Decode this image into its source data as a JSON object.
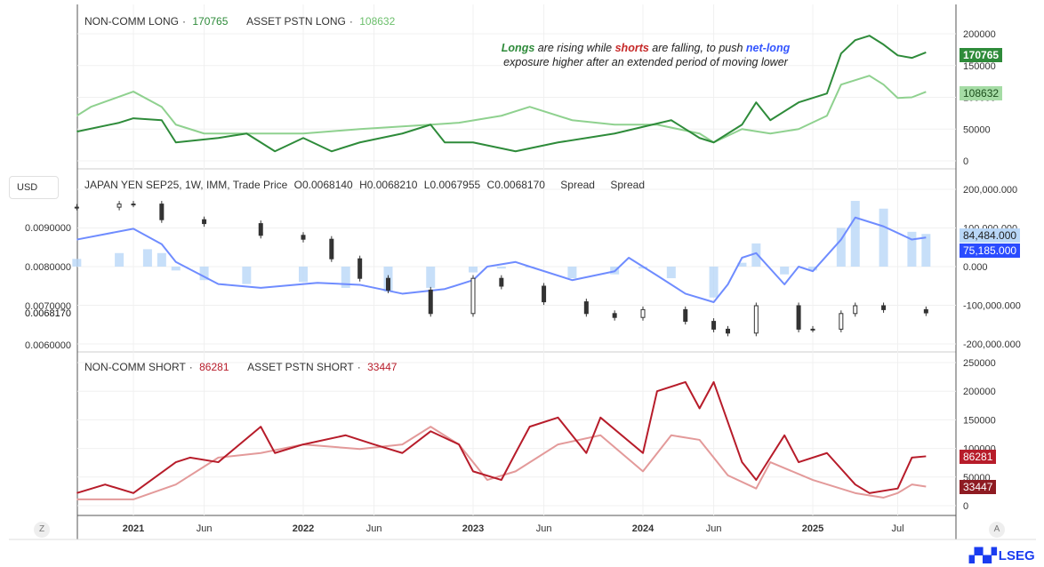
{
  "chart_data": [
    {
      "type": "line",
      "panel": "top",
      "legend": [
        {
          "name": "NON-COMM LONG",
          "last": "170765",
          "color": "#2e8b3a"
        },
        {
          "name": "ASSET PSTN LONG",
          "last": "108632",
          "color": "#8fd18f"
        }
      ],
      "yticks": [
        "200000",
        "150000",
        "100000",
        "50000",
        "0"
      ],
      "ylim": [
        0,
        200000
      ],
      "annotation": {
        "w1": "Longs",
        "t1": " are rising while ",
        "w2": "shorts",
        "t2": " are falling, to push ",
        "w3": "net-long",
        "line2": "exposure higher after an extended period of moving lower",
        "colors": {
          "longs": "#2e8b3a",
          "shorts": "#c62828",
          "netlong": "#3355ff"
        }
      },
      "series": [
        {
          "name": "NON-COMM LONG",
          "points": [
            [
              "2020-09",
              46000
            ],
            [
              "2020-12",
              60000
            ],
            [
              "2021-01",
              67000
            ],
            [
              "2021-03",
              64000
            ],
            [
              "2021-04",
              29000
            ],
            [
              "2021-07",
              36000
            ],
            [
              "2021-09",
              43000
            ],
            [
              "2021-11",
              15000
            ],
            [
              "2022-01",
              36000
            ],
            [
              "2022-03",
              15000
            ],
            [
              "2022-05",
              29000
            ],
            [
              "2022-08",
              43000
            ],
            [
              "2022-10",
              57000
            ],
            [
              "2022-11",
              29000
            ],
            [
              "2023-01",
              29000
            ],
            [
              "2023-04",
              15000
            ],
            [
              "2023-07",
              29000
            ],
            [
              "2023-11",
              43000
            ],
            [
              "2024-03",
              64000
            ],
            [
              "2024-05",
              36000
            ],
            [
              "2024-06",
              29000
            ],
            [
              "2024-08",
              57000
            ],
            [
              "2024-09",
              92000
            ],
            [
              "2024-10",
              64000
            ],
            [
              "2024-12",
              92000
            ],
            [
              "2025-02",
              106000
            ],
            [
              "2025-03",
              169000
            ],
            [
              "2025-04",
              190000
            ],
            [
              "2025-05",
              197000
            ],
            [
              "2025-06",
              183000
            ],
            [
              "2025-07",
              166000
            ],
            [
              "2025-08",
              162000
            ],
            [
              "2025-09",
              170765
            ]
          ]
        },
        {
          "name": "ASSET PSTN LONG",
          "points": [
            [
              "2020-09",
              71000
            ],
            [
              "2020-10",
              85000
            ],
            [
              "2021-01",
              109000
            ],
            [
              "2021-03",
              85000
            ],
            [
              "2021-04",
              57000
            ],
            [
              "2021-06",
              43000
            ],
            [
              "2022-01",
              43000
            ],
            [
              "2022-05",
              50000
            ],
            [
              "2022-10",
              57000
            ],
            [
              "2022-12",
              60000
            ],
            [
              "2023-03",
              71000
            ],
            [
              "2023-05",
              85000
            ],
            [
              "2023-08",
              64000
            ],
            [
              "2023-11",
              57000
            ],
            [
              "2024-02",
              57000
            ],
            [
              "2024-05",
              43000
            ],
            [
              "2024-06",
              29000
            ],
            [
              "2024-08",
              50000
            ],
            [
              "2024-10",
              43000
            ],
            [
              "2024-12",
              50000
            ],
            [
              "2025-02",
              71000
            ],
            [
              "2025-03",
              120000
            ],
            [
              "2025-05",
              134000
            ],
            [
              "2025-06",
              120000
            ],
            [
              "2025-07",
              99000
            ],
            [
              "2025-08",
              100000
            ],
            [
              "2025-09",
              108632
            ]
          ]
        }
      ]
    },
    {
      "type": "candlestick+bar+line",
      "panel": "middle",
      "currency": "USD",
      "title": "JAPAN YEN SEP25, 1W, IMM, Trade Price",
      "ohlc": {
        "o": "O0.0068140",
        "h": "H0.0068210",
        "l": "L0.0067955",
        "c": "C0.0068170"
      },
      "spread_labels": [
        "Spread",
        "Spread"
      ],
      "left_ticks": [
        "0.0090000",
        "0.0080000",
        "0.0070000",
        "0.0060000"
      ],
      "last_price": "0.0068170",
      "right_ticks": [
        "200,000.000",
        "100,000.000",
        "0.000",
        "-100,000.000",
        "-200,000.000"
      ],
      "bar_last": "84,484.000",
      "line_last": "75,185.000",
      "colors": {
        "bars": "#b9d7f7",
        "line": "#6f8cff",
        "line_badge": "#2a4cff",
        "candles": "#333333"
      },
      "price": [
        [
          "2020-09",
          0.00952
        ],
        [
          "2020-12",
          0.0096
        ],
        [
          "2021-01",
          0.0096
        ],
        [
          "2021-03",
          0.0092
        ],
        [
          "2021-06",
          0.0091
        ],
        [
          "2021-10",
          0.0088
        ],
        [
          "2022-01",
          0.0087
        ],
        [
          "2022-03",
          0.0082
        ],
        [
          "2022-05",
          0.0077
        ],
        [
          "2022-07",
          0.0074
        ],
        [
          "2022-10",
          0.0068
        ],
        [
          "2023-01",
          0.0077
        ],
        [
          "2023-03",
          0.0075
        ],
        [
          "2023-06",
          0.0071
        ],
        [
          "2023-09",
          0.0068
        ],
        [
          "2023-11",
          0.0067
        ],
        [
          "2024-01",
          0.0069
        ],
        [
          "2024-04",
          0.0066
        ],
        [
          "2024-06",
          0.0064
        ],
        [
          "2024-07",
          0.0063
        ],
        [
          "2024-09",
          0.007
        ],
        [
          "2024-12",
          0.0064
        ],
        [
          "2025-01",
          0.0064
        ],
        [
          "2025-03",
          0.0068
        ],
        [
          "2025-04",
          0.007
        ],
        [
          "2025-06",
          0.0069
        ],
        [
          "2025-09",
          0.006817
        ]
      ],
      "net_bars": [
        [
          "2020-09",
          20000000
        ],
        [
          "2020-12",
          35000000
        ],
        [
          "2021-02",
          45000000
        ],
        [
          "2021-03",
          35000000
        ],
        [
          "2021-04",
          -10000000
        ],
        [
          "2021-06",
          -35000000
        ],
        [
          "2021-09",
          -45000000
        ],
        [
          "2022-01",
          -40000000
        ],
        [
          "2022-04",
          -55000000
        ],
        [
          "2022-07",
          -65000000
        ],
        [
          "2022-10",
          -55000000
        ],
        [
          "2023-01",
          -15000000
        ],
        [
          "2023-03",
          -5000000
        ],
        [
          "2023-05",
          0
        ],
        [
          "2023-08",
          -30000000
        ],
        [
          "2023-11",
          -20000000
        ],
        [
          "2024-01",
          -5000000
        ],
        [
          "2024-03",
          -30000000
        ],
        [
          "2024-06",
          -80000000
        ],
        [
          "2024-08",
          10000000
        ],
        [
          "2024-09",
          60000000
        ],
        [
          "2024-11",
          -20000000
        ],
        [
          "2025-01",
          -10000000
        ],
        [
          "2025-03",
          100000000
        ],
        [
          "2025-04",
          170000000
        ],
        [
          "2025-06",
          150000000
        ],
        [
          "2025-08",
          90000000
        ],
        [
          "2025-09",
          84484000
        ]
      ],
      "net_line": [
        [
          "2020-09",
          70000000
        ],
        [
          "2021-01",
          98000000
        ],
        [
          "2021-03",
          58000000
        ],
        [
          "2021-04",
          12000000
        ],
        [
          "2021-07",
          -45000000
        ],
        [
          "2021-10",
          -55000000
        ],
        [
          "2022-02",
          -42000000
        ],
        [
          "2022-05",
          -47000000
        ],
        [
          "2022-08",
          -70000000
        ],
        [
          "2022-11",
          -58000000
        ],
        [
          "2023-01",
          -35000000
        ],
        [
          "2023-02",
          0
        ],
        [
          "2023-04",
          12000000
        ],
        [
          "2023-05",
          0
        ],
        [
          "2023-08",
          -35000000
        ],
        [
          "2023-11",
          -12000000
        ],
        [
          "2023-12",
          23000000
        ],
        [
          "2024-02",
          -23000000
        ],
        [
          "2024-04",
          -70000000
        ],
        [
          "2024-06",
          -92000000
        ],
        [
          "2024-07",
          -46000000
        ],
        [
          "2024-08",
          23000000
        ],
        [
          "2024-09",
          35000000
        ],
        [
          "2024-11",
          -46000000
        ],
        [
          "2024-12",
          0
        ],
        [
          "2025-01",
          -12000000
        ],
        [
          "2025-03",
          70000000
        ],
        [
          "2025-04",
          127000000
        ],
        [
          "2025-06",
          104000000
        ],
        [
          "2025-08",
          70000000
        ],
        [
          "2025-09",
          75185000
        ]
      ]
    },
    {
      "type": "line",
      "panel": "bottom",
      "legend": [
        {
          "name": "NON-COMM SHORT",
          "last": "86281",
          "color": "#b71c2a"
        },
        {
          "name": "ASSET PSTN SHORT",
          "last": "33447",
          "color": "#e39a9a"
        }
      ],
      "yticks": [
        "250000",
        "200000",
        "150000",
        "100000",
        "50000",
        "0"
      ],
      "ylim": [
        0,
        250000
      ],
      "series": [
        {
          "name": "NON-COMM SHORT",
          "points": [
            [
              "2020-09",
              22000
            ],
            [
              "2020-11",
              37000
            ],
            [
              "2021-01",
              22000
            ],
            [
              "2021-04",
              76000
            ],
            [
              "2021-05",
              84000
            ],
            [
              "2021-07",
              76000
            ],
            [
              "2021-10",
              138000
            ],
            [
              "2021-11",
              92000
            ],
            [
              "2022-01",
              107000
            ],
            [
              "2022-04",
              123000
            ],
            [
              "2022-06",
              107000
            ],
            [
              "2022-08",
              92000
            ],
            [
              "2022-10",
              130000
            ],
            [
              "2022-12",
              107000
            ],
            [
              "2023-01",
              60000
            ],
            [
              "2023-03",
              45000
            ],
            [
              "2023-04",
              92000
            ],
            [
              "2023-05",
              138000
            ],
            [
              "2023-07",
              154000
            ],
            [
              "2023-09",
              92000
            ],
            [
              "2023-10",
              154000
            ],
            [
              "2024-01",
              92000
            ],
            [
              "2024-02",
              200000
            ],
            [
              "2024-04",
              216000
            ],
            [
              "2024-05",
              170000
            ],
            [
              "2024-06",
              216000
            ],
            [
              "2024-08",
              76000
            ],
            [
              "2024-09",
              45000
            ],
            [
              "2024-11",
              123000
            ],
            [
              "2024-12",
              76000
            ],
            [
              "2025-02",
              92000
            ],
            [
              "2025-04",
              37000
            ],
            [
              "2025-05",
              22000
            ],
            [
              "2025-07",
              30000
            ],
            [
              "2025-08",
              84000
            ],
            [
              "2025-09",
              86281
            ]
          ]
        },
        {
          "name": "ASSET PSTN SHORT",
          "points": [
            [
              "2020-09",
              11000
            ],
            [
              "2021-01",
              11000
            ],
            [
              "2021-04",
              37000
            ],
            [
              "2021-07",
              84000
            ],
            [
              "2021-10",
              92000
            ],
            [
              "2022-01",
              107000
            ],
            [
              "2022-05",
              99000
            ],
            [
              "2022-08",
              107000
            ],
            [
              "2022-10",
              138000
            ],
            [
              "2022-12",
              107000
            ],
            [
              "2023-02",
              45000
            ],
            [
              "2023-04",
              60000
            ],
            [
              "2023-07",
              107000
            ],
            [
              "2023-10",
              123000
            ],
            [
              "2024-01",
              60000
            ],
            [
              "2024-03",
              123000
            ],
            [
              "2024-05",
              115000
            ],
            [
              "2024-07",
              53000
            ],
            [
              "2024-09",
              30000
            ],
            [
              "2024-10",
              76000
            ],
            [
              "2025-01",
              45000
            ],
            [
              "2025-04",
              22000
            ],
            [
              "2025-06",
              14000
            ],
            [
              "2025-07",
              22000
            ],
            [
              "2025-08",
              37000
            ],
            [
              "2025-09",
              33447
            ]
          ]
        }
      ]
    }
  ],
  "x_axis": {
    "ticks": [
      [
        "2021",
        "2021-01"
      ],
      [
        "Jun",
        "2021-06"
      ],
      [
        "2022",
        "2022-01"
      ],
      [
        "Jun",
        "2022-06"
      ],
      [
        "2023",
        "2023-01"
      ],
      [
        "Jun",
        "2023-06"
      ],
      [
        "2024",
        "2024-01"
      ],
      [
        "Jun",
        "2024-06"
      ],
      [
        "2025",
        "2025-01"
      ],
      [
        "Jul",
        "2025-07"
      ]
    ]
  },
  "controls": {
    "left": "Z",
    "right": "A"
  },
  "logo": "LSEG"
}
